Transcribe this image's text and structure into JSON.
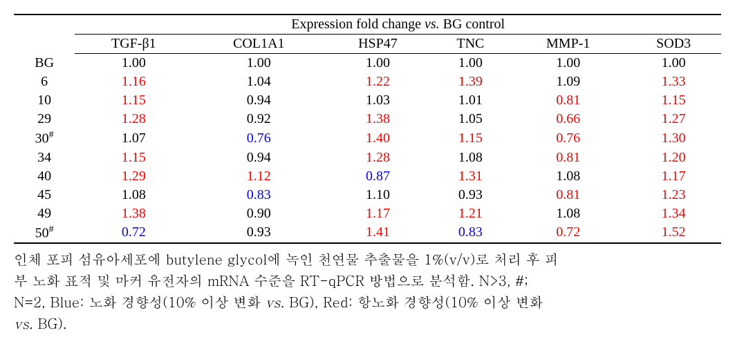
{
  "colors": {
    "black": "#000000",
    "red": "#ff0000",
    "blue": "#0000ff"
  },
  "header": {
    "span_title": "Expression fold change ",
    "span_title_italic": "vs.",
    "span_title_after": " BG control",
    "columns": [
      "TGF-β1",
      "COL1A1",
      "HSP47",
      "TNC",
      "MMP-1",
      "SOD3"
    ]
  },
  "rows": [
    {
      "label": "BG",
      "hash": false,
      "cells": [
        {
          "v": "1.00",
          "c": "black"
        },
        {
          "v": "1.00",
          "c": "black"
        },
        {
          "v": "1.00",
          "c": "black"
        },
        {
          "v": "1.00",
          "c": "black"
        },
        {
          "v": "1.00",
          "c": "black"
        },
        {
          "v": "1.00",
          "c": "black"
        }
      ]
    },
    {
      "label": "6",
      "hash": false,
      "cells": [
        {
          "v": "1.16",
          "c": "red"
        },
        {
          "v": "1.04",
          "c": "black"
        },
        {
          "v": "1.22",
          "c": "red"
        },
        {
          "v": "1.39",
          "c": "red"
        },
        {
          "v": "1.09",
          "c": "black"
        },
        {
          "v": "1.33",
          "c": "red"
        }
      ]
    },
    {
      "label": "10",
      "hash": false,
      "cells": [
        {
          "v": "1.15",
          "c": "red"
        },
        {
          "v": "0.94",
          "c": "black"
        },
        {
          "v": "1.03",
          "c": "black"
        },
        {
          "v": "1.01",
          "c": "black"
        },
        {
          "v": "0.81",
          "c": "red"
        },
        {
          "v": "1.15",
          "c": "red"
        }
      ]
    },
    {
      "label": "29",
      "hash": false,
      "cells": [
        {
          "v": "1.28",
          "c": "red"
        },
        {
          "v": "0.92",
          "c": "black"
        },
        {
          "v": "1.38",
          "c": "red"
        },
        {
          "v": "1.05",
          "c": "black"
        },
        {
          "v": "0.66",
          "c": "red"
        },
        {
          "v": "1.27",
          "c": "red"
        }
      ]
    },
    {
      "label": "30",
      "hash": true,
      "cells": [
        {
          "v": "1.07",
          "c": "black"
        },
        {
          "v": "0.76",
          "c": "blue"
        },
        {
          "v": "1.40",
          "c": "red"
        },
        {
          "v": "1.15",
          "c": "red"
        },
        {
          "v": "0.76",
          "c": "red"
        },
        {
          "v": "1.30",
          "c": "red"
        }
      ]
    },
    {
      "label": "34",
      "hash": false,
      "cells": [
        {
          "v": "1.15",
          "c": "red"
        },
        {
          "v": "0.94",
          "c": "black"
        },
        {
          "v": "1.28",
          "c": "red"
        },
        {
          "v": "1.08",
          "c": "black"
        },
        {
          "v": "0.81",
          "c": "red"
        },
        {
          "v": "1.20",
          "c": "red"
        }
      ]
    },
    {
      "label": "40",
      "hash": false,
      "cells": [
        {
          "v": "1.29",
          "c": "red"
        },
        {
          "v": "1.12",
          "c": "red"
        },
        {
          "v": "0.87",
          "c": "blue"
        },
        {
          "v": "1.31",
          "c": "red"
        },
        {
          "v": "1.08",
          "c": "black"
        },
        {
          "v": "1.17",
          "c": "red"
        }
      ]
    },
    {
      "label": "45",
      "hash": false,
      "cells": [
        {
          "v": "1.08",
          "c": "black"
        },
        {
          "v": "0.83",
          "c": "blue"
        },
        {
          "v": "1.10",
          "c": "black"
        },
        {
          "v": "0.93",
          "c": "black"
        },
        {
          "v": "0.81",
          "c": "red"
        },
        {
          "v": "1.23",
          "c": "red"
        }
      ]
    },
    {
      "label": "49",
      "hash": false,
      "cells": [
        {
          "v": "1.38",
          "c": "red"
        },
        {
          "v": "0.90",
          "c": "black"
        },
        {
          "v": "1.17",
          "c": "red"
        },
        {
          "v": "1.21",
          "c": "red"
        },
        {
          "v": "1.08",
          "c": "black"
        },
        {
          "v": "1.34",
          "c": "red"
        }
      ]
    },
    {
      "label": "50",
      "hash": true,
      "cells": [
        {
          "v": "0.72",
          "c": "blue"
        },
        {
          "v": "0.93",
          "c": "black"
        },
        {
          "v": "1.41",
          "c": "red"
        },
        {
          "v": "0.83",
          "c": "blue"
        },
        {
          "v": "0.72",
          "c": "red"
        },
        {
          "v": "1.52",
          "c": "red"
        }
      ]
    }
  ],
  "footnote": {
    "line1_a": "인체 포피 섬유아세포에 butylene glycol에 녹인 천연물 추출물을 1%(v/v)로 처리 후 피",
    "line2_a": "부 노화 표적 및 마커 유전자의 mRNA 수준을 RT-qPCR 방법으로 분석함. N>3, #;",
    "line3_a": "N=2, Blue: 노화 경향성(10% 이상 변화 ",
    "line3_italic1": "vs.",
    "line3_b": " BG), Red: 항노화 경향성(10% 이상 변화",
    "line4_italic": "vs.",
    "line4_b": " BG)."
  }
}
